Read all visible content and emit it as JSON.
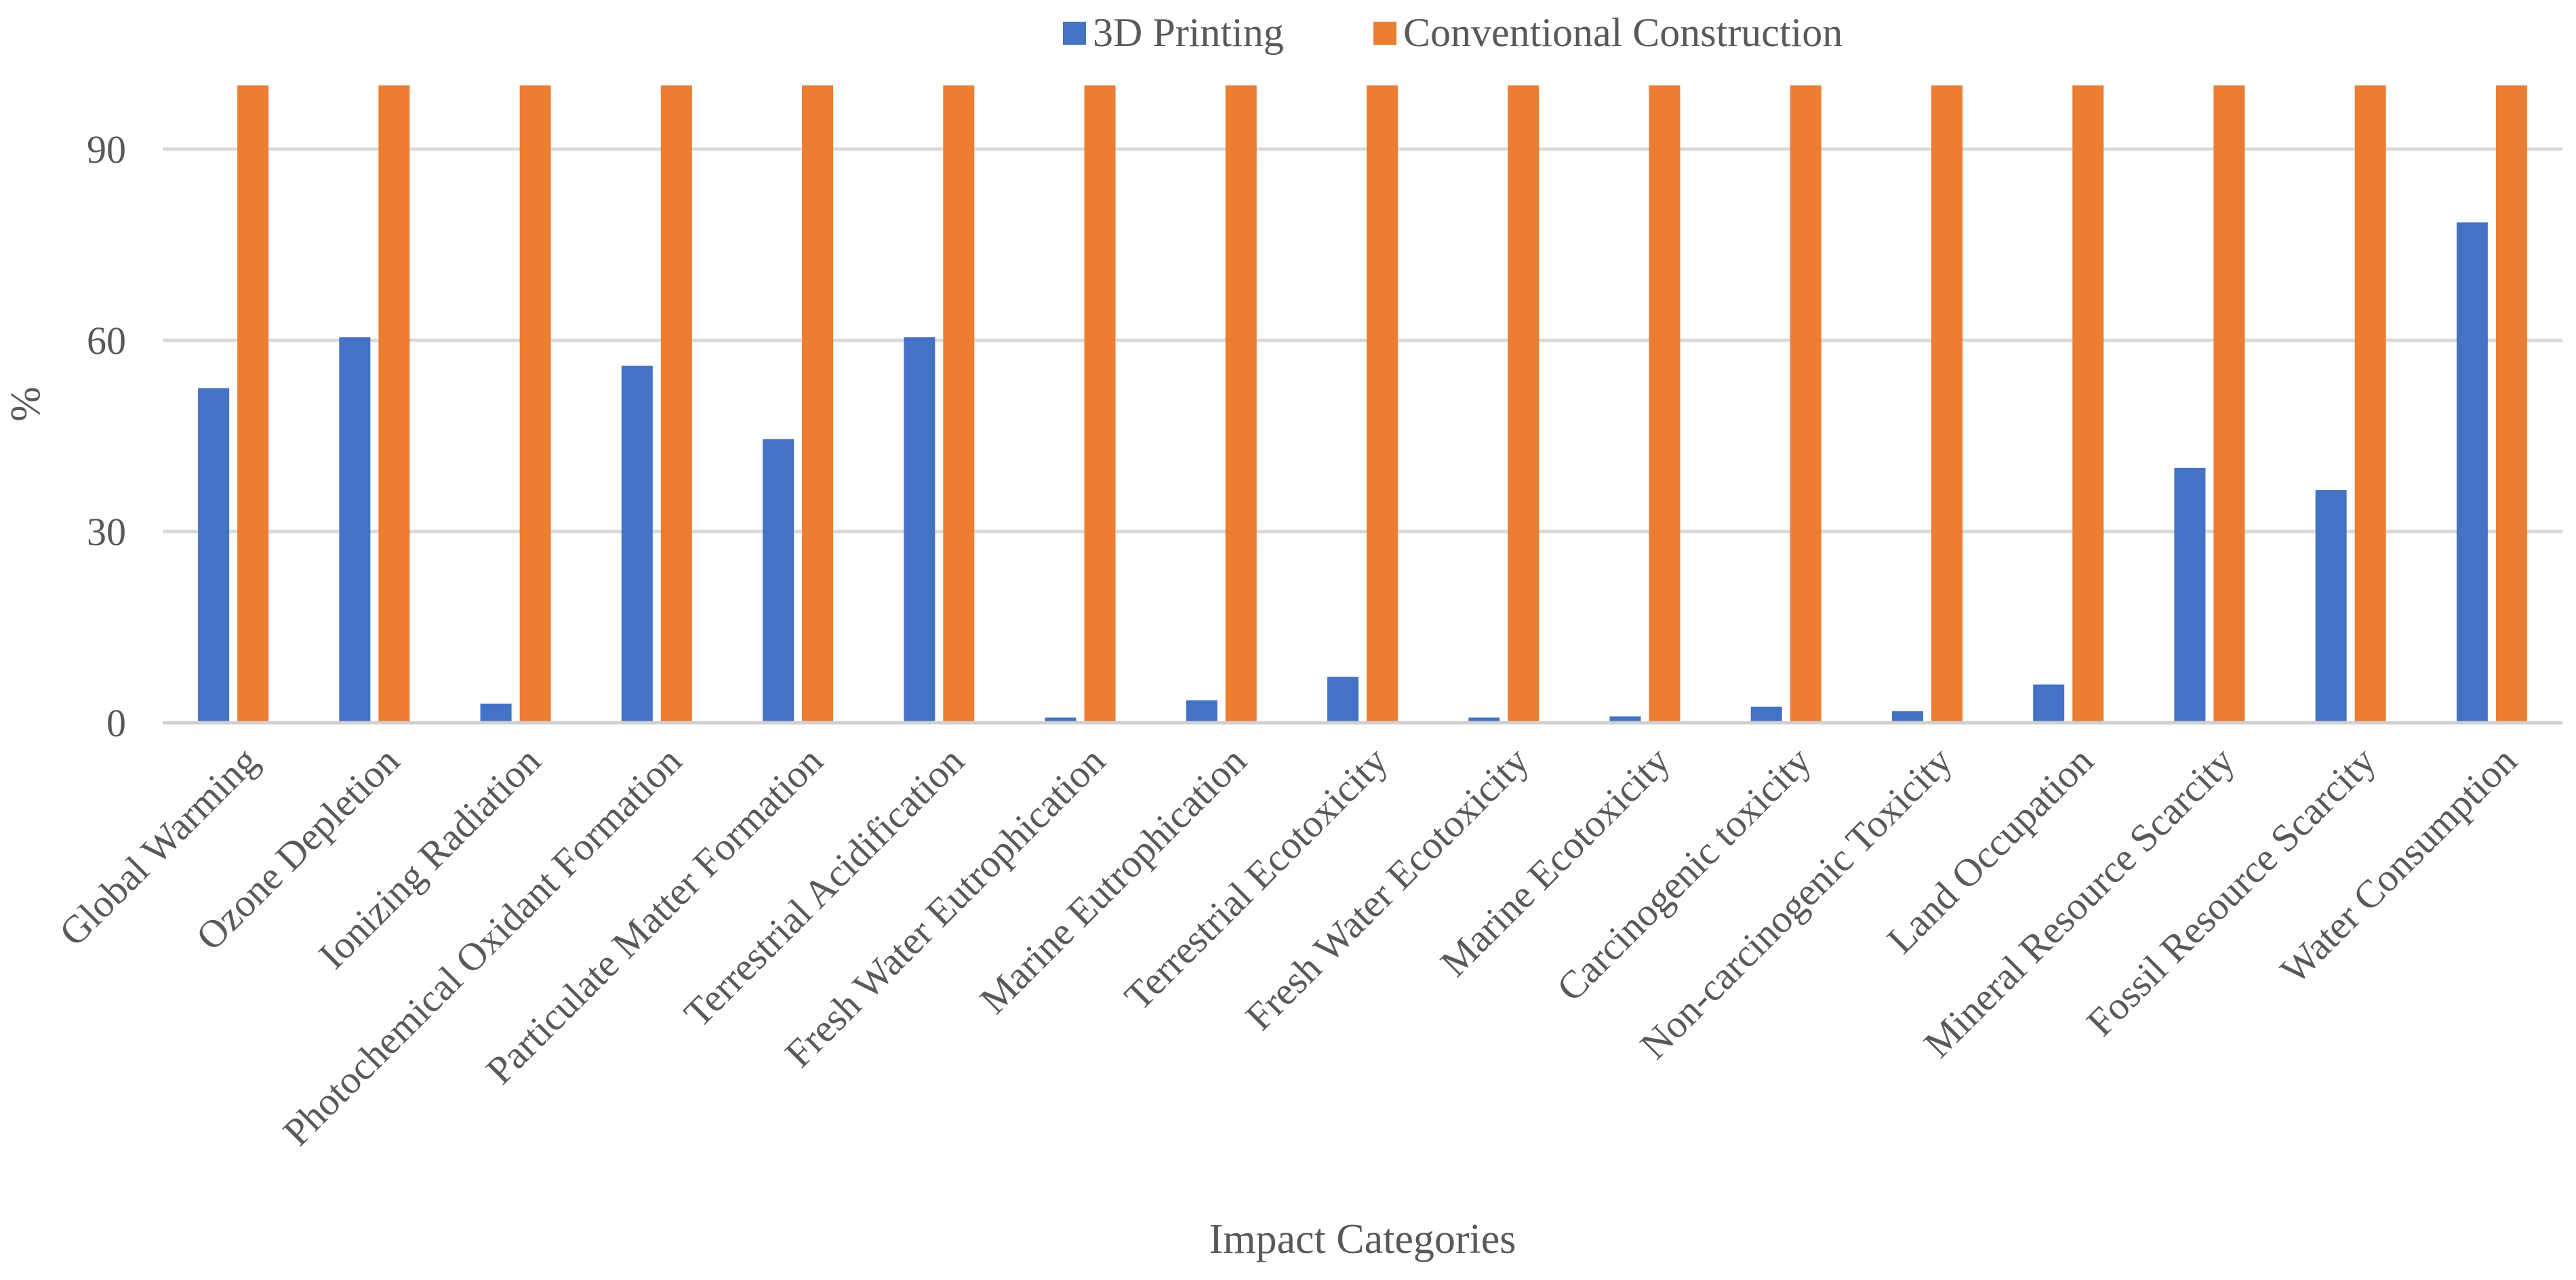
{
  "chart_data": {
    "type": "bar",
    "title": "",
    "xlabel": "Impact Categories",
    "ylabel": "%",
    "ylim": [
      0,
      100
    ],
    "yticks": [
      0,
      30,
      60,
      90
    ],
    "grid": true,
    "legend_position": "top",
    "categories": [
      "Global Warming",
      "Ozone Depletion",
      "Ionizing Radiation",
      "Photochemical Oxidant Formation",
      "Particulate Matter Formation",
      "Terrestrial Acidification",
      "Fresh Water Eutrophication",
      "Marine Eutrophication",
      "Terrestrial Ecotoxicity",
      "Fresh Water Ecotoxicity",
      "Marine Ecotoxicity",
      "Carcinogenic toxicity",
      "Non-carcinogenic Toxicity",
      "Land Occupation",
      "Mineral Resource Scarcity",
      "Fossil Resource Scarcity",
      "Water Consumption"
    ],
    "series": [
      {
        "name": "3D Printing",
        "color": "#4472C4",
        "values": [
          52.5,
          60.5,
          3,
          56,
          44.5,
          60.5,
          0.8,
          3.5,
          7.2,
          0.8,
          1,
          2.5,
          1.8,
          6,
          40,
          36.5,
          78.5
        ]
      },
      {
        "name": "Conventional Construction",
        "color": "#ED7D31",
        "values": [
          100,
          100,
          100,
          100,
          100,
          100,
          100,
          100,
          100,
          100,
          100,
          100,
          100,
          100,
          100,
          100,
          100
        ]
      }
    ]
  }
}
